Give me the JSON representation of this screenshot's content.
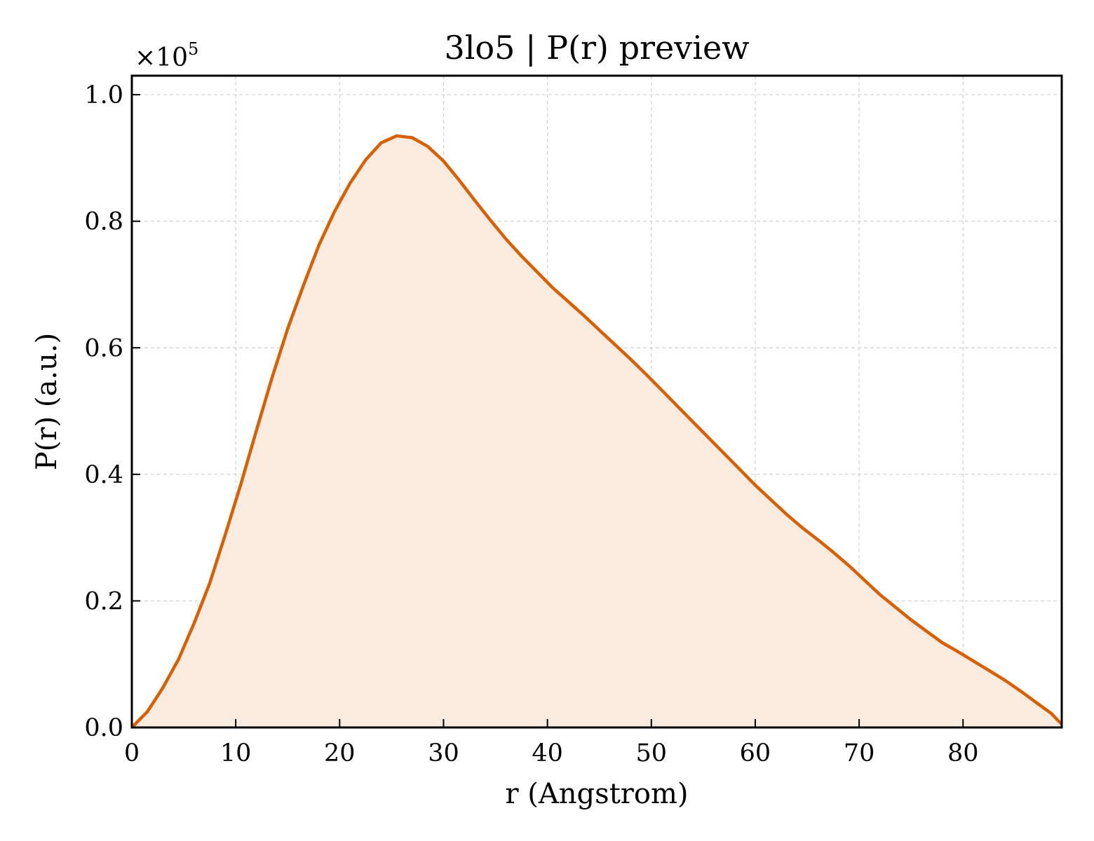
{
  "chart_data": {
    "type": "area",
    "title": "3lo5 | P(r) preview",
    "xlabel": "r (Angstrom)",
    "ylabel": "P(r) (a.u.)",
    "y_offset": {
      "base": "×10",
      "exponent": "5",
      "multiplier": 100000
    },
    "xlim": [
      0,
      89.5
    ],
    "ylim": [
      0,
      1.03
    ],
    "xticks": [
      0,
      10,
      20,
      30,
      40,
      50,
      60,
      70,
      80
    ],
    "xtick_labels": [
      "0",
      "10",
      "20",
      "30",
      "40",
      "50",
      "60",
      "70",
      "80"
    ],
    "yticks": [
      0.0,
      0.2,
      0.4,
      0.6,
      0.8,
      1.0
    ],
    "ytick_labels": [
      "0.0",
      "0.2",
      "0.4",
      "0.6",
      "0.8",
      "1.0"
    ],
    "grid": true,
    "series": [
      {
        "line_color": "#d95f02",
        "fill_color": "#f9ebe0",
        "x": [
          0,
          1.5,
          3,
          4.5,
          6,
          7.5,
          9,
          10.5,
          12,
          13.5,
          15,
          16.5,
          18,
          19.5,
          21,
          22.5,
          24,
          25.5,
          27,
          28.5,
          30,
          31.5,
          33,
          34.5,
          36,
          37.5,
          39,
          40.5,
          42,
          43.5,
          45,
          46.5,
          48,
          49.5,
          51,
          52.5,
          54,
          55.5,
          57,
          58.5,
          60,
          61.5,
          63,
          64.5,
          66,
          67.5,
          69,
          70.5,
          72,
          73.5,
          75,
          76.5,
          78,
          79.5,
          81,
          82.5,
          84,
          85.5,
          87,
          88.5,
          89.5
        ],
        "y": [
          0.0,
          0.025,
          0.063,
          0.108,
          0.165,
          0.228,
          0.305,
          0.385,
          0.47,
          0.553,
          0.63,
          0.698,
          0.762,
          0.815,
          0.86,
          0.897,
          0.924,
          0.935,
          0.932,
          0.918,
          0.895,
          0.865,
          0.833,
          0.802,
          0.772,
          0.745,
          0.72,
          0.695,
          0.673,
          0.651,
          0.628,
          0.605,
          0.582,
          0.558,
          0.533,
          0.508,
          0.483,
          0.458,
          0.433,
          0.408,
          0.383,
          0.36,
          0.337,
          0.316,
          0.297,
          0.277,
          0.256,
          0.233,
          0.21,
          0.19,
          0.17,
          0.152,
          0.134,
          0.12,
          0.105,
          0.09,
          0.075,
          0.058,
          0.04,
          0.022,
          0.005
        ]
      }
    ]
  }
}
